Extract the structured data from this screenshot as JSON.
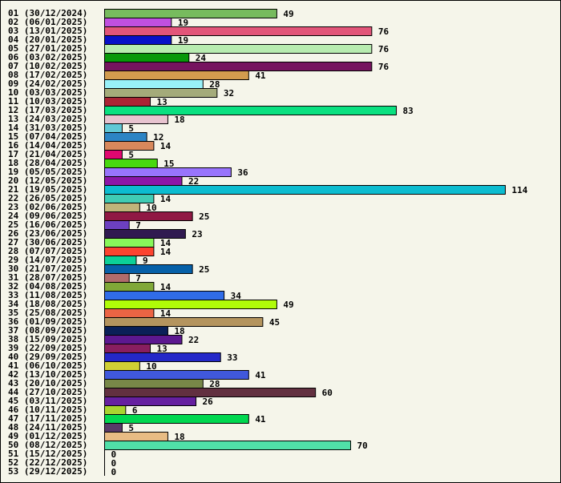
{
  "chart_data": {
    "type": "bar",
    "orientation": "horizontal",
    "title": "",
    "xlabel": "",
    "ylabel": "",
    "xlim": [
      0,
      114
    ],
    "grid": false,
    "categories": [
      "01 (30/12/2024)",
      "02 (06/01/2025)",
      "03 (13/01/2025)",
      "04 (20/01/2025)",
      "05 (27/01/2025)",
      "06 (03/02/2025)",
      "07 (10/02/2025)",
      "08 (17/02/2025)",
      "09 (24/02/2025)",
      "10 (03/03/2025)",
      "11 (10/03/2025)",
      "12 (17/03/2025)",
      "13 (24/03/2025)",
      "14 (31/03/2025)",
      "15 (07/04/2025)",
      "16 (14/04/2025)",
      "17 (21/04/2025)",
      "18 (28/04/2025)",
      "19 (05/05/2025)",
      "20 (12/05/2025)",
      "21 (19/05/2025)",
      "22 (26/05/2025)",
      "23 (02/06/2025)",
      "24 (09/06/2025)",
      "25 (16/06/2025)",
      "26 (23/06/2025)",
      "27 (30/06/2025)",
      "28 (07/07/2025)",
      "29 (14/07/2025)",
      "30 (21/07/2025)",
      "31 (28/07/2025)",
      "32 (04/08/2025)",
      "33 (11/08/2025)",
      "34 (18/08/2025)",
      "35 (25/08/2025)",
      "36 (01/09/2025)",
      "37 (08/09/2025)",
      "38 (15/09/2025)",
      "39 (22/09/2025)",
      "40 (29/09/2025)",
      "41 (06/10/2025)",
      "42 (13/10/2025)",
      "43 (20/10/2025)",
      "44 (27/10/2025)",
      "45 (03/11/2025)",
      "46 (10/11/2025)",
      "47 (17/11/2025)",
      "48 (24/11/2025)",
      "49 (01/12/2025)",
      "50 (08/12/2025)",
      "51 (15/12/2025)",
      "52 (22/12/2025)",
      "53 (29/12/2025)"
    ],
    "values": [
      49,
      19,
      76,
      19,
      76,
      24,
      76,
      41,
      28,
      32,
      13,
      83,
      18,
      5,
      12,
      14,
      5,
      15,
      36,
      22,
      114,
      14,
      10,
      25,
      7,
      23,
      14,
      14,
      9,
      25,
      7,
      14,
      34,
      49,
      14,
      45,
      18,
      22,
      13,
      33,
      10,
      41,
      28,
      60,
      26,
      6,
      41,
      5,
      18,
      70,
      0,
      0,
      0
    ],
    "colors": [
      "#77bb5e",
      "#c050e0",
      "#e25579",
      "#0810c8",
      "#b8ecb0",
      "#08980a",
      "#76145f",
      "#d29b4e",
      "#98f0f8",
      "#a4ab7a",
      "#aa2435",
      "#0ae080",
      "#e8c4d0",
      "#62c8d6",
      "#2c84c4",
      "#d8885c",
      "#e00870",
      "#48d810",
      "#9874fc",
      "#8c16a8",
      "#0cbcd0",
      "#40ccb4",
      "#c0b47a",
      "#901844",
      "#6c40c0",
      "#301a50",
      "#88f85a",
      "#fc4430",
      "#0cd098",
      "#0660a8",
      "#b06c6c",
      "#80a838",
      "#306ce8",
      "#b0fc08",
      "#ec6444",
      "#b4945e",
      "#0a2058",
      "#5c1890",
      "#881e60",
      "#2428c8",
      "#d0d034",
      "#4058dc",
      "#788848",
      "#623040",
      "#6620a0",
      "#a8d430",
      "#00d850",
      "#583a68",
      "#e8bc84",
      "#50e0a8",
      "#ffffff",
      "#ffffff",
      "#ffffff"
    ]
  }
}
